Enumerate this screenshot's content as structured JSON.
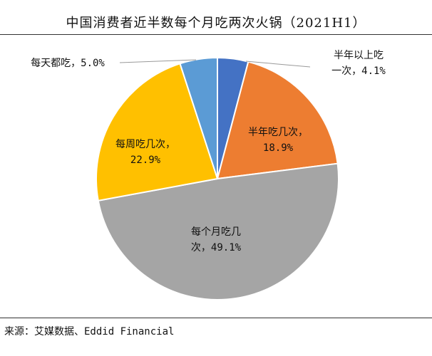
{
  "title": "中国消费者近半数每个月吃两次火锅（2021H1）",
  "source": "来源：艾媒数据、Eddid Financial",
  "chart_data": {
    "type": "pie",
    "title": "中国消费者近半数每个月吃两次火锅（2021H1）",
    "slices": [
      {
        "label_lines": [
          "半年以上吃",
          "一次，4.1%"
        ],
        "value": 4.1,
        "color": "#4472C4"
      },
      {
        "label_lines": [
          "半年吃几次，",
          "18.9%"
        ],
        "value": 18.9,
        "color": "#ED7D31"
      },
      {
        "label_lines": [
          "每个月吃几",
          "次，49.1%"
        ],
        "value": 49.1,
        "color": "#A5A5A5"
      },
      {
        "label_lines": [
          "每周吃几次，",
          "22.9%"
        ],
        "value": 22.9,
        "color": "#FFC000"
      },
      {
        "label_lines": [
          "每天都吃，5.0%"
        ],
        "value": 5.0,
        "color": "#5B9BD5"
      }
    ]
  }
}
